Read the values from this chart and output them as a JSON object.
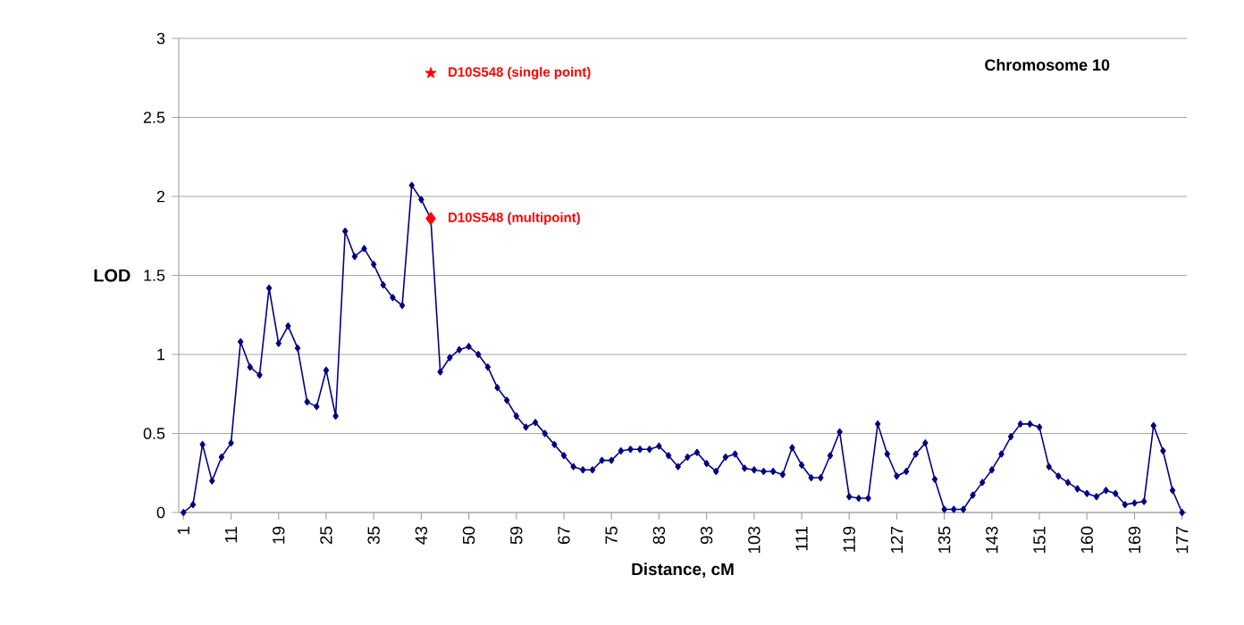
{
  "chart_data": {
    "type": "line",
    "xlabel": "Distance, cM",
    "ylabel": "LOD",
    "categories": [
      "1",
      null,
      null,
      null,
      null,
      "11",
      null,
      null,
      null,
      null,
      "19",
      null,
      null,
      null,
      null,
      "25",
      null,
      null,
      null,
      null,
      "35",
      null,
      null,
      null,
      null,
      "43",
      null,
      null,
      null,
      null,
      "50",
      null,
      null,
      null,
      null,
      "59",
      null,
      null,
      null,
      null,
      "67",
      null,
      null,
      null,
      null,
      "75",
      null,
      null,
      null,
      null,
      "83",
      null,
      null,
      null,
      null,
      "93",
      null,
      null,
      null,
      null,
      "103",
      null,
      null,
      null,
      null,
      "111",
      null,
      null,
      null,
      null,
      "119",
      null,
      null,
      null,
      null,
      "127",
      null,
      null,
      null,
      null,
      "135",
      null,
      null,
      null,
      null,
      "143",
      null,
      null,
      null,
      null,
      "151",
      null,
      null,
      null,
      null,
      "160",
      null,
      null,
      null,
      null,
      "169",
      null,
      null,
      null,
      null,
      "177"
    ],
    "series": [
      {
        "color": "#000080",
        "marker": "diamond",
        "values": [
          0.0,
          0.05,
          0.43,
          0.2,
          0.35,
          0.44,
          1.08,
          0.92,
          0.87,
          1.42,
          1.07,
          1.18,
          1.04,
          0.7,
          0.67,
          0.9,
          0.61,
          1.78,
          1.62,
          1.67,
          1.57,
          1.44,
          1.36,
          1.31,
          2.07,
          1.98,
          1.86,
          0.89,
          0.98,
          1.03,
          1.05,
          1.0,
          0.92,
          0.79,
          0.71,
          0.61,
          0.54,
          0.57,
          0.5,
          0.43,
          0.36,
          0.29,
          0.27,
          0.27,
          0.33,
          0.33,
          0.39,
          0.4,
          0.4,
          0.4,
          0.42,
          0.36,
          0.29,
          0.35,
          0.38,
          0.31,
          0.26,
          0.35,
          0.37,
          0.28,
          0.27,
          0.26,
          0.26,
          0.24,
          0.41,
          0.3,
          0.22,
          0.22,
          0.36,
          0.51,
          0.1,
          0.09,
          0.09,
          0.56,
          0.37,
          0.23,
          0.26,
          0.37,
          0.44,
          0.21,
          0.02,
          0.02,
          0.02,
          0.11,
          0.19,
          0.27,
          0.37,
          0.48,
          0.56,
          0.56,
          0.54,
          0.29,
          0.23,
          0.19,
          0.15,
          0.12,
          0.1,
          0.14,
          0.12,
          0.05,
          0.06,
          0.07,
          0.55,
          0.39,
          0.14,
          0.0
        ]
      },
      {
        "type": "scatter",
        "name": "D10S548 (single point)",
        "color": "#ff0000",
        "marker": "star",
        "values": [
          null,
          null,
          null,
          null,
          null,
          null,
          null,
          null,
          null,
          null,
          null,
          null,
          null,
          null,
          null,
          null,
          null,
          null,
          null,
          null,
          null,
          null,
          null,
          null,
          null,
          null,
          2.78,
          null,
          null,
          null,
          null,
          null,
          null,
          null,
          null,
          null,
          null,
          null,
          null,
          null,
          null,
          null,
          null,
          null,
          null,
          null,
          null,
          null,
          null,
          null,
          null,
          null,
          null,
          null,
          null,
          null,
          null,
          null,
          null,
          null,
          null,
          null,
          null,
          null,
          null,
          null,
          null,
          null,
          null,
          null,
          null,
          null,
          null,
          null,
          null,
          null,
          null,
          null,
          null,
          null,
          null,
          null,
          null,
          null,
          null,
          null,
          null,
          null,
          null,
          null,
          null,
          null,
          null,
          null,
          null,
          null,
          null,
          null,
          null,
          null,
          null,
          null,
          null,
          null,
          null,
          null
        ]
      },
      {
        "type": "scatter",
        "name": "D10S548 (multipoint)",
        "color": "#ff0000",
        "marker": "diamond",
        "values": [
          null,
          null,
          null,
          null,
          null,
          null,
          null,
          null,
          null,
          null,
          null,
          null,
          null,
          null,
          null,
          null,
          null,
          null,
          null,
          null,
          null,
          null,
          null,
          null,
          null,
          null,
          1.86,
          null,
          null,
          null,
          null,
          null,
          null,
          null,
          null,
          null,
          null,
          null,
          null,
          null,
          null,
          null,
          null,
          null,
          null,
          null,
          null,
          null,
          null,
          null,
          null,
          null,
          null,
          null,
          null,
          null,
          null,
          null,
          null,
          null,
          null,
          null,
          null,
          null,
          null,
          null,
          null,
          null,
          null,
          null,
          null,
          null,
          null,
          null,
          null,
          null,
          null,
          null,
          null,
          null,
          null,
          null,
          null,
          null,
          null,
          null,
          null,
          null,
          null,
          null,
          null,
          null,
          null,
          null,
          null,
          null,
          null,
          null,
          null,
          null,
          null,
          null,
          null,
          null,
          null,
          null
        ]
      }
    ],
    "ylim": [
      0,
      3
    ],
    "yticks": [
      0,
      0.5,
      1,
      1.5,
      2,
      2.5,
      3
    ],
    "grid": "y",
    "annotations": [
      "Chromosome 10"
    ]
  }
}
